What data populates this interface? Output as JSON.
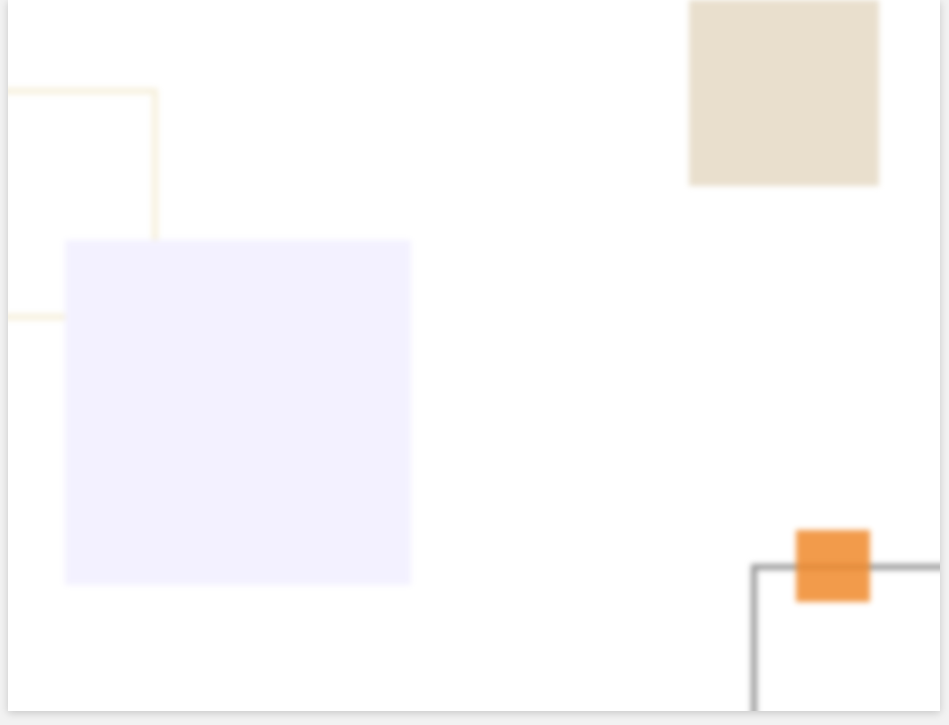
{
  "canvas": {
    "background": "#ffffff",
    "frame_shadow": "#d9d9d9"
  },
  "shapes": [
    {
      "name": "cream-outlined-rectangle",
      "kind": "outline",
      "color": "#f6f0dd"
    },
    {
      "name": "lavender-filled-square",
      "kind": "fill",
      "color": "#f3f1ff"
    },
    {
      "name": "tan-filled-square",
      "kind": "fill",
      "color": "#e9dfcd"
    },
    {
      "name": "gray-outlined-rectangle",
      "kind": "outline",
      "color": "#9c9c9c"
    },
    {
      "name": "orange-filled-square",
      "kind": "fill",
      "color": "#f08a2c"
    }
  ]
}
